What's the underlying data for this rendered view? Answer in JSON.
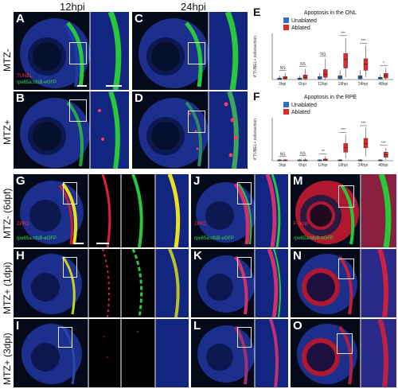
{
  "figure": {
    "col_12hpi": "12hpi",
    "col_24hpi": "24hpi",
    "row_mtz_minus": "MTZ-",
    "row_mtz_plus": "MTZ+",
    "row_mtz_minus_6dpf": "MTZ- (6dpf)",
    "row_mtz_plus_1dpi": "MTZ+ (1dpi)",
    "row_mtz_plus_3dpi": "MTZ+ (3dpi)"
  },
  "panels": {
    "A": {
      "label": "A",
      "stain1": "TUNEL",
      "stain2": "rpe65a:nfsB-eGFP"
    },
    "B": {
      "label": "B"
    },
    "C": {
      "label": "C"
    },
    "D": {
      "label": "D"
    },
    "G": {
      "label": "G",
      "stain1": "ZPR2",
      "stain2": "rpe65a:nfsB-eGFP"
    },
    "H": {
      "label": "H"
    },
    "I": {
      "label": "I"
    },
    "J": {
      "label": "J",
      "stain1": "ZPR1",
      "stain2": "rpe65a:nfsB-eGFP"
    },
    "K": {
      "label": "K"
    },
    "L": {
      "label": "L"
    },
    "M": {
      "label": "M",
      "stain1": "F-actin",
      "stain2": "rpe65a:nfsB-eGFP"
    },
    "N": {
      "label": "N"
    },
    "O": {
      "label": "O"
    }
  },
  "colors": {
    "nuclei": "#1c2f8c",
    "gfp": "#28c83c",
    "red": "#e0203a",
    "unablated": "#2d6fc4",
    "ablated": "#e02a2a"
  },
  "chart_data": [
    {
      "panel": "E",
      "type": "box",
      "title": "Apoptosis in the ONL",
      "ylabel": "# TUNEL+ cells/section",
      "categories": [
        "3hpi",
        "6hpi",
        "12hpi",
        "18hpi",
        "24hpi",
        "48hpi"
      ],
      "significance": [
        "NS",
        "NS",
        "NS",
        "***",
        "***",
        "*"
      ],
      "ylim": [
        0,
        60
      ],
      "series": [
        {
          "name": "Unablated",
          "color": "#2d6fc4",
          "boxes": [
            [
              0,
              0,
              1,
              2,
              5
            ],
            [
              0,
              0,
              1,
              2,
              5
            ],
            [
              0,
              1,
              2,
              4,
              8
            ],
            [
              0,
              1,
              3,
              5,
              12
            ],
            [
              0,
              1,
              3,
              5,
              12
            ],
            [
              0,
              1,
              2,
              3,
              7
            ]
          ]
        },
        {
          "name": "Ablated",
          "color": "#e02a2a",
          "boxes": [
            [
              0,
              1,
              2,
              4,
              9
            ],
            [
              0,
              1,
              3,
              6,
              14
            ],
            [
              0,
              3,
              7,
              13,
              27
            ],
            [
              3,
              15,
              26,
              34,
              54
            ],
            [
              3,
              12,
              20,
              27,
              44
            ],
            [
              0,
              2,
              5,
              8,
              15
            ]
          ]
        }
      ]
    },
    {
      "panel": "F",
      "type": "box",
      "title": "Apoptosis in the RPE",
      "ylabel": "# TUNEL+ cells/section",
      "categories": [
        "3hpi",
        "6hpi",
        "12hpi",
        "18hpi",
        "24hpi",
        "48hpi"
      ],
      "significance": [
        "NS",
        "NS",
        "**",
        "***",
        "***",
        "***"
      ],
      "ylim": [
        0,
        50
      ],
      "series": [
        {
          "name": "Unablated",
          "color": "#2d6fc4",
          "boxes": [
            [
              0,
              0,
              0,
              1,
              2
            ],
            [
              0,
              0,
              0,
              1,
              2
            ],
            [
              0,
              0,
              0,
              1,
              2
            ],
            [
              0,
              0,
              0,
              1,
              2
            ],
            [
              0,
              0,
              0,
              1,
              2
            ],
            [
              0,
              0,
              0,
              1,
              2
            ]
          ]
        },
        {
          "name": "Ablated",
          "color": "#e02a2a",
          "boxes": [
            [
              0,
              0,
              0,
              1,
              2
            ],
            [
              0,
              0,
              0,
              1,
              3
            ],
            [
              0,
              0,
              1,
              2,
              5
            ],
            [
              3,
              10,
              15,
              20,
              30
            ],
            [
              5,
              15,
              20,
              26,
              38
            ],
            [
              1,
              4,
              7,
              10,
              15
            ]
          ]
        }
      ]
    }
  ]
}
